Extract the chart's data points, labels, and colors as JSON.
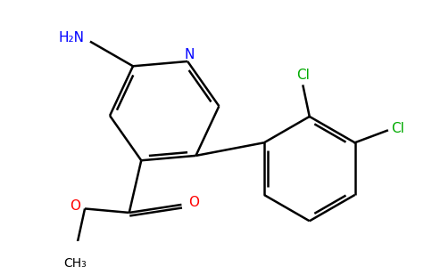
{
  "background_color": "#ffffff",
  "bond_color": "#000000",
  "bond_width": 1.8,
  "atom_colors": {
    "N_ring": "#0000ff",
    "H2N": "#0000ff",
    "Cl": "#00aa00",
    "O": "#ff0000",
    "C": "#000000"
  },
  "figsize": [
    4.84,
    3.0
  ],
  "dpi": 100,
  "xlim": [
    0,
    484
  ],
  "ylim": [
    0,
    300
  ]
}
